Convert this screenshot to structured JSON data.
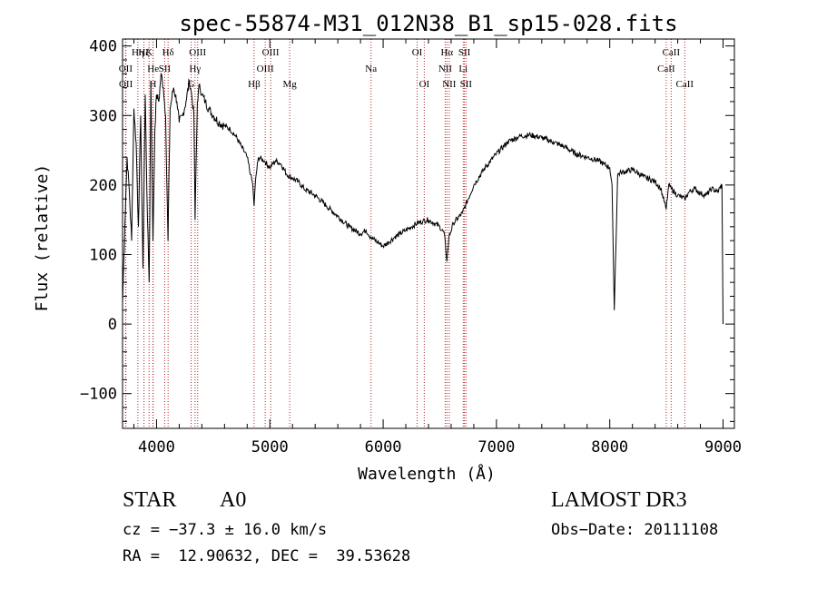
{
  "chart_data": {
    "type": "line",
    "title": "spec-55874-M31_012N38_B1_sp15-028.fits",
    "xlabel": "Wavelength (Å)",
    "ylabel": "Flux (relative)",
    "xlim": [
      3700,
      9100
    ],
    "ylim": [
      -150,
      410
    ],
    "x_ticks": [
      4000,
      5000,
      6000,
      7000,
      8000,
      9000
    ],
    "y_ticks": [
      -100,
      0,
      100,
      200,
      300,
      400
    ],
    "series": [
      {
        "name": "flux",
        "x": [
          3700,
          3720,
          3740,
          3760,
          3780,
          3800,
          3820,
          3840,
          3860,
          3880,
          3900,
          3920,
          3935,
          3950,
          3968,
          3985,
          4000,
          4020,
          4040,
          4060,
          4080,
          4101,
          4120,
          4150,
          4180,
          4200,
          4230,
          4260,
          4290,
          4310,
          4330,
          4340,
          4360,
          4380,
          4400,
          4430,
          4460,
          4500,
          4550,
          4600,
          4650,
          4700,
          4750,
          4800,
          4830,
          4850,
          4861,
          4875,
          4900,
          4950,
          5000,
          5050,
          5100,
          5150,
          5200,
          5250,
          5300,
          5400,
          5500,
          5600,
          5700,
          5800,
          5850,
          5890,
          5950,
          6000,
          6050,
          6100,
          6150,
          6200,
          6250,
          6300,
          6350,
          6400,
          6450,
          6500,
          6540,
          6563,
          6580,
          6620,
          6700,
          6800,
          6900,
          7000,
          7100,
          7200,
          7300,
          7400,
          7500,
          7600,
          7700,
          7800,
          7900,
          7950,
          8000,
          8020,
          8040,
          8070,
          8100,
          8200,
          8300,
          8400,
          8450,
          8498,
          8520,
          8542,
          8570,
          8600,
          8662,
          8700,
          8750,
          8800,
          8850,
          8900,
          8950,
          8990,
          9000
        ],
        "y": [
          30,
          140,
          240,
          190,
          120,
          310,
          260,
          140,
          300,
          80,
          330,
          150,
          60,
          350,
          120,
          280,
          330,
          320,
          360,
          340,
          300,
          120,
          310,
          340,
          320,
          290,
          300,
          320,
          350,
          330,
          300,
          150,
          320,
          345,
          330,
          320,
          310,
          300,
          290,
          285,
          280,
          270,
          255,
          240,
          215,
          200,
          170,
          210,
          240,
          235,
          225,
          235,
          230,
          215,
          210,
          205,
          195,
          185,
          170,
          155,
          140,
          130,
          135,
          125,
          118,
          112,
          118,
          125,
          130,
          135,
          140,
          145,
          148,
          150,
          145,
          140,
          130,
          90,
          125,
          145,
          160,
          200,
          225,
          245,
          262,
          270,
          272,
          268,
          262,
          255,
          245,
          240,
          235,
          230,
          225,
          200,
          20,
          215,
          218,
          222,
          212,
          205,
          195,
          165,
          200,
          195,
          190,
          185,
          180,
          190,
          195,
          188,
          185,
          195,
          190,
          200,
          0
        ]
      }
    ],
    "lines": [
      {
        "name": "Hη",
        "wave": 3835,
        "row": 1
      },
      {
        "name": "Hζ",
        "wave": 3889,
        "row": 1
      },
      {
        "name": "K",
        "wave": 3934,
        "row": 1
      },
      {
        "name": "Hδ",
        "wave": 4102,
        "row": 1
      },
      {
        "name": "OII",
        "wave": 3727,
        "row": 2
      },
      {
        "name": "He",
        "wave": 3970,
        "row": 2
      },
      {
        "name": "SII",
        "wave": 4072,
        "row": 2
      },
      {
        "name": "OII",
        "wave": 3729,
        "row": 3
      },
      {
        "name": "H",
        "wave": 3968,
        "row": 3
      },
      {
        "name": "G",
        "wave": 4305,
        "row": 3
      },
      {
        "name": "OIII",
        "wave": 4363,
        "row": 1
      },
      {
        "name": "Hγ",
        "wave": 4340,
        "row": 2
      },
      {
        "name": "Hβ",
        "wave": 4861,
        "row": 3
      },
      {
        "name": "OIII",
        "wave": 4959,
        "row": 2
      },
      {
        "name": "OIII",
        "wave": 5007,
        "row": 1
      },
      {
        "name": "Mg",
        "wave": 5175,
        "row": 3
      },
      {
        "name": "Na",
        "wave": 5893,
        "row": 2
      },
      {
        "name": "OI",
        "wave": 6300,
        "row": 1
      },
      {
        "name": "OI",
        "wave": 6363,
        "row": 3
      },
      {
        "name": "NII",
        "wave": 6548,
        "row": 2
      },
      {
        "name": "Hα",
        "wave": 6563,
        "row": 1
      },
      {
        "name": "NII",
        "wave": 6583,
        "row": 3
      },
      {
        "name": "SII",
        "wave": 6717,
        "row": 1
      },
      {
        "name": "Li",
        "wave": 6707,
        "row": 2
      },
      {
        "name": "SII",
        "wave": 6731,
        "row": 3
      },
      {
        "name": "CaII",
        "wave": 8498,
        "row": 2
      },
      {
        "name": "CaII",
        "wave": 8542,
        "row": 1
      },
      {
        "name": "CaII",
        "wave": 8662,
        "row": 3
      }
    ]
  },
  "info": {
    "class": "STAR",
    "subclass": "A0",
    "survey": "LAMOST DR3",
    "cz": "cz = −37.3 ± 16.0 km/s",
    "obs_date": "Obs−Date: 20111108",
    "radec": "RA =  12.90632, DEC =  39.53628"
  },
  "colors": {
    "axis": "#000000",
    "line": "#000000",
    "marker": "#b22222"
  }
}
